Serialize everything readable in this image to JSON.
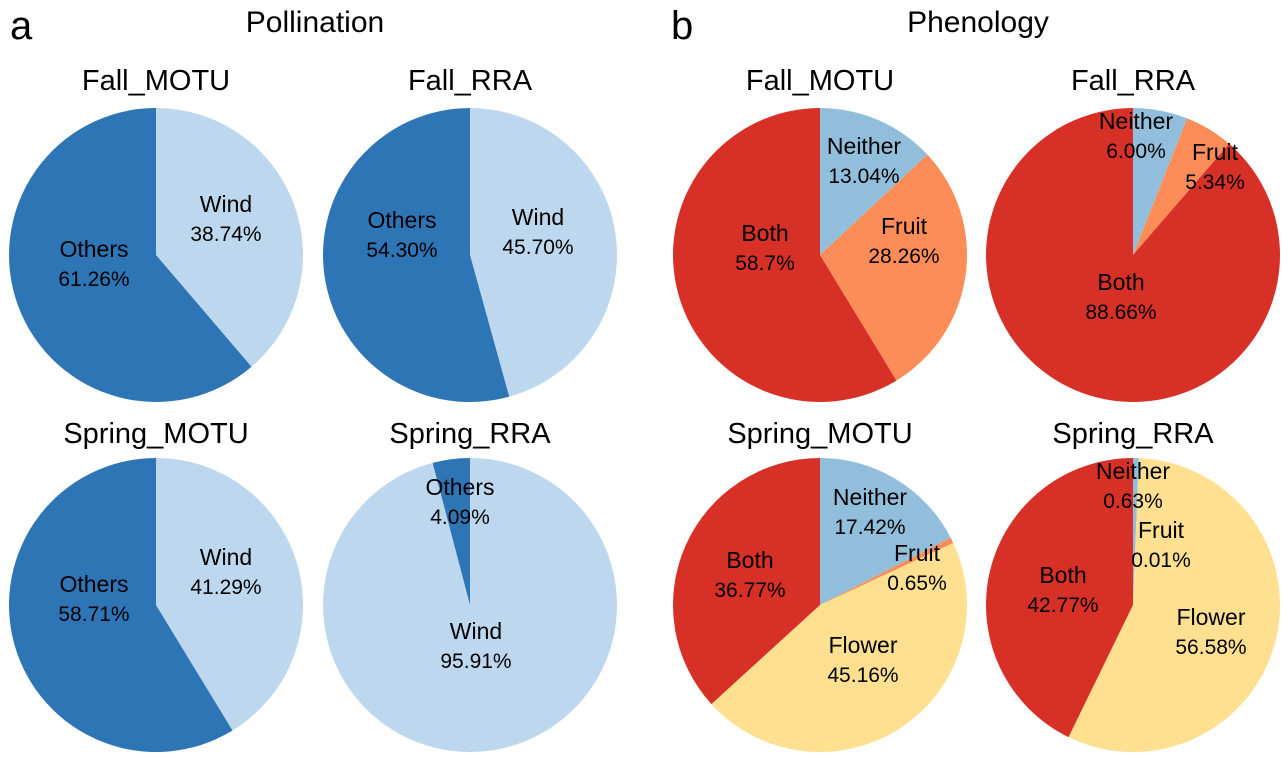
{
  "panels": [
    {
      "letter": "a",
      "title": "Pollination"
    },
    {
      "letter": "b",
      "title": "Phenology"
    }
  ],
  "colors": {
    "others": "#2e75b6",
    "wind": "#bdd7ee",
    "both": "#d73027",
    "neither": "#91bfdb",
    "fruit": "#fc8d59",
    "flower": "#fee090"
  },
  "chart_data": [
    {
      "type": "pie",
      "panel": "a",
      "title": "Fall_MOTU",
      "slices": [
        {
          "label": "Wind",
          "value_label": "38.74%",
          "value": 38.74,
          "color": "#bdd7ee"
        },
        {
          "label": "Others",
          "value_label": "61.26%",
          "value": 61.26,
          "color": "#2e75b6"
        }
      ]
    },
    {
      "type": "pie",
      "panel": "a",
      "title": "Fall_RRA",
      "slices": [
        {
          "label": "Wind",
          "value_label": "45.70%",
          "value": 45.7,
          "color": "#bdd7ee"
        },
        {
          "label": "Others",
          "value_label": "54.30%",
          "value": 54.3,
          "color": "#2e75b6"
        }
      ]
    },
    {
      "type": "pie",
      "panel": "a",
      "title": "Spring_MOTU",
      "slices": [
        {
          "label": "Wind",
          "value_label": "41.29%",
          "value": 41.29,
          "color": "#bdd7ee"
        },
        {
          "label": "Others",
          "value_label": "58.71%",
          "value": 58.71,
          "color": "#2e75b6"
        }
      ]
    },
    {
      "type": "pie",
      "panel": "a",
      "title": "Spring_RRA",
      "slices": [
        {
          "label": "Wind",
          "value_label": "95.91%",
          "value": 95.91,
          "color": "#bdd7ee"
        },
        {
          "label": "Others",
          "value_label": "4.09%",
          "value": 4.09,
          "color": "#2e75b6"
        }
      ]
    },
    {
      "type": "pie",
      "panel": "b",
      "title": "Fall_MOTU",
      "slices": [
        {
          "label": "Neither",
          "value_label": "13.04%",
          "value": 13.04,
          "color": "#91bfdb"
        },
        {
          "label": "Fruit",
          "value_label": "28.26%",
          "value": 28.26,
          "color": "#fc8d59"
        },
        {
          "label": "Both",
          "value_label": "58.7%",
          "value": 58.7,
          "color": "#d73027"
        }
      ]
    },
    {
      "type": "pie",
      "panel": "b",
      "title": "Fall_RRA",
      "slices": [
        {
          "label": "Neither",
          "value_label": "6.00%",
          "value": 6.0,
          "color": "#91bfdb"
        },
        {
          "label": "Fruit",
          "value_label": "5.34%",
          "value": 5.34,
          "color": "#fc8d59"
        },
        {
          "label": "Both",
          "value_label": "88.66%",
          "value": 88.66,
          "color": "#d73027"
        }
      ]
    },
    {
      "type": "pie",
      "panel": "b",
      "title": "Spring_MOTU",
      "slices": [
        {
          "label": "Neither",
          "value_label": "17.42%",
          "value": 17.42,
          "color": "#91bfdb"
        },
        {
          "label": "Fruit",
          "value_label": "0.65%",
          "value": 0.65,
          "color": "#fc8d59"
        },
        {
          "label": "Flower",
          "value_label": "45.16%",
          "value": 45.16,
          "color": "#fee090"
        },
        {
          "label": "Both",
          "value_label": "36.77%",
          "value": 36.77,
          "color": "#d73027"
        }
      ]
    },
    {
      "type": "pie",
      "panel": "b",
      "title": "Spring_RRA",
      "slices": [
        {
          "label": "Neither",
          "value_label": "0.63%",
          "value": 0.63,
          "color": "#91bfdb"
        },
        {
          "label": "Fruit",
          "value_label": "0.01%",
          "value": 0.01,
          "color": "#fc8d59"
        },
        {
          "label": "Flower",
          "value_label": "56.58%",
          "value": 56.58,
          "color": "#fee090"
        },
        {
          "label": "Both",
          "value_label": "42.77%",
          "value": 42.77,
          "color": "#d73027"
        }
      ]
    }
  ]
}
